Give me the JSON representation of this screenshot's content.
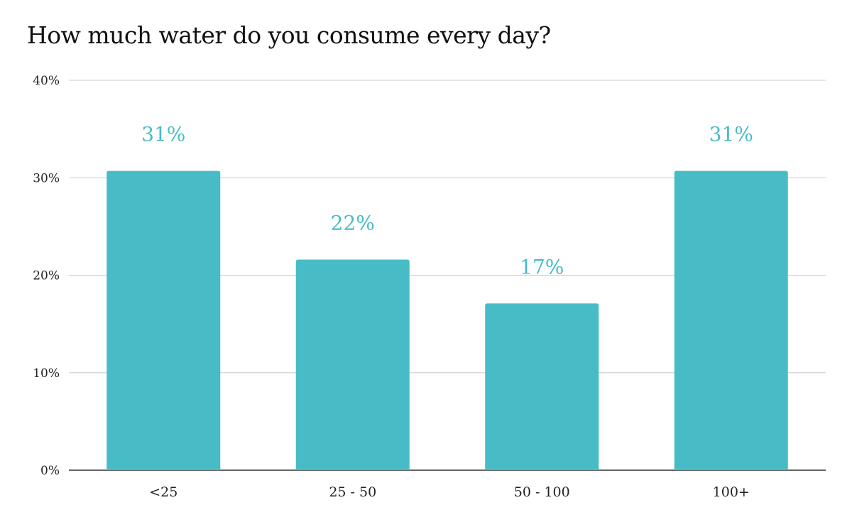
{
  "chart_data": {
    "type": "bar",
    "title": "How much water do you consume every day?",
    "xlabel": "",
    "ylabel": "",
    "categories": [
      "<25",
      "25 - 50",
      "50 - 100",
      "100+"
    ],
    "values": [
      30.7,
      21.6,
      17.1,
      30.7
    ],
    "data_labels": [
      "31%",
      "22%",
      "17%",
      "31%"
    ],
    "ylim": [
      0,
      40
    ],
    "yticks": [
      0,
      10,
      20,
      30,
      40
    ],
    "ytick_labels": [
      "0%",
      "10%",
      "20%",
      "30%",
      "40%"
    ],
    "grid": true,
    "legend": "none",
    "bar_color": "#47bcc6",
    "grid_color": "#cccccc",
    "axis_color": "#333333"
  }
}
